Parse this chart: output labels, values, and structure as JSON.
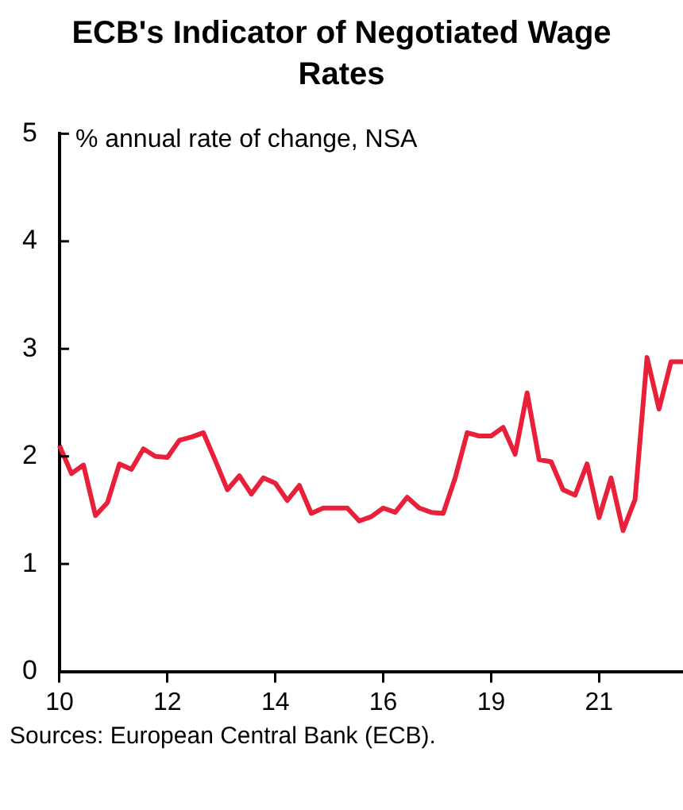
{
  "chart_data": {
    "type": "line",
    "title": "ECB's Indicator of Negotiated Wage Rates",
    "ylabel": "% annual rate of change, NSA",
    "annotations": [
      "Sources: European Central Bank (ECB)."
    ],
    "categories": [
      "10",
      null,
      null,
      null,
      null,
      null,
      null,
      null,
      null,
      "12",
      null,
      null,
      null,
      null,
      null,
      null,
      null,
      null,
      "14",
      null,
      null,
      null,
      null,
      null,
      null,
      null,
      null,
      "16",
      null,
      null,
      null,
      null,
      null,
      null,
      null,
      null,
      "19",
      null,
      null,
      null,
      null,
      null,
      null,
      null,
      null,
      "21",
      null,
      null,
      null,
      null,
      null,
      null,
      null
    ],
    "series": [
      {
        "color": "#e8203a",
        "values": [
          2.1,
          1.84,
          1.92,
          1.45,
          1.57,
          1.93,
          1.88,
          2.07,
          2.0,
          1.99,
          2.15,
          2.18,
          2.22,
          1.96,
          1.69,
          1.82,
          1.65,
          1.8,
          1.75,
          1.59,
          1.73,
          1.47,
          1.52,
          1.52,
          1.52,
          1.4,
          1.44,
          1.52,
          1.48,
          1.62,
          1.52,
          1.48,
          1.47,
          1.8,
          2.22,
          2.19,
          2.19,
          2.27,
          2.02,
          2.59,
          1.97,
          1.95,
          1.69,
          1.64,
          1.93,
          1.43,
          1.8,
          1.31,
          1.6,
          2.92,
          2.44,
          2.88,
          2.88
        ]
      }
    ],
    "ylim": [
      0,
      5
    ],
    "yticks": [
      0,
      1,
      2,
      3,
      4,
      5
    ],
    "grid": false,
    "legend": false,
    "marker": "none",
    "line_style": "solid"
  }
}
